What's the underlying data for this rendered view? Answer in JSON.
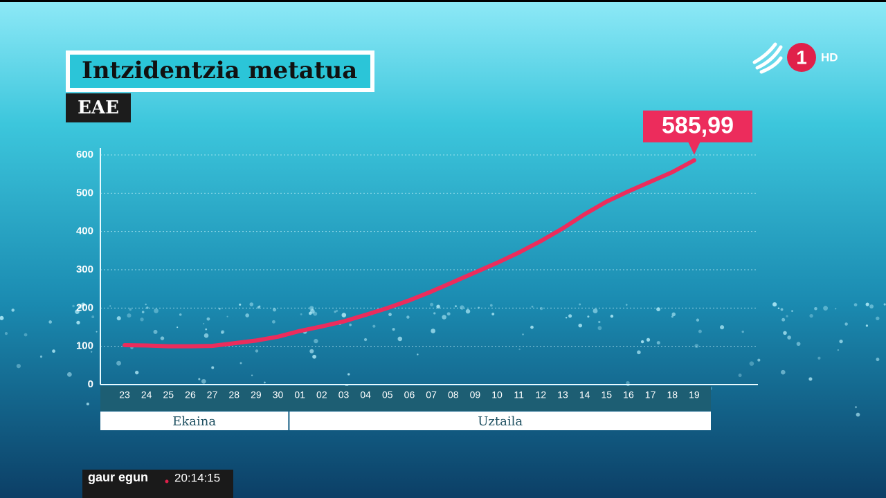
{
  "chart_data": {
    "type": "line",
    "title": "Intzidentzia metatua",
    "subtitle": "EAE",
    "categories": [
      "23",
      "24",
      "25",
      "26",
      "27",
      "28",
      "29",
      "30",
      "01",
      "02",
      "03",
      "04",
      "05",
      "06",
      "07",
      "08",
      "09",
      "10",
      "11",
      "12",
      "13",
      "14",
      "15",
      "16",
      "17",
      "18",
      "19"
    ],
    "x_groups": [
      {
        "label": "Ekaina",
        "start": "23",
        "end": "30"
      },
      {
        "label": "Uztaila",
        "start": "01",
        "end": "19"
      }
    ],
    "values": [
      103,
      102,
      100,
      100,
      101,
      108,
      115,
      125,
      140,
      152,
      165,
      182,
      200,
      220,
      243,
      268,
      293,
      318,
      345,
      375,
      408,
      445,
      478,
      505,
      530,
      555,
      585.99
    ],
    "value_labels": [
      null,
      null,
      null,
      null,
      null,
      null,
      null,
      null,
      null,
      null,
      null,
      null,
      null,
      null,
      null,
      null,
      null,
      null,
      null,
      null,
      null,
      null,
      null,
      null,
      null,
      null,
      "585,99"
    ],
    "color": "#ec2c5c",
    "ylim": [
      0,
      600
    ],
    "yticks": [
      0,
      100,
      200,
      300,
      400,
      500,
      600
    ],
    "grid": true
  },
  "channel": {
    "number": "1",
    "quality": "HD"
  },
  "program": {
    "name": "gaur egun",
    "time": "20:14:15"
  }
}
